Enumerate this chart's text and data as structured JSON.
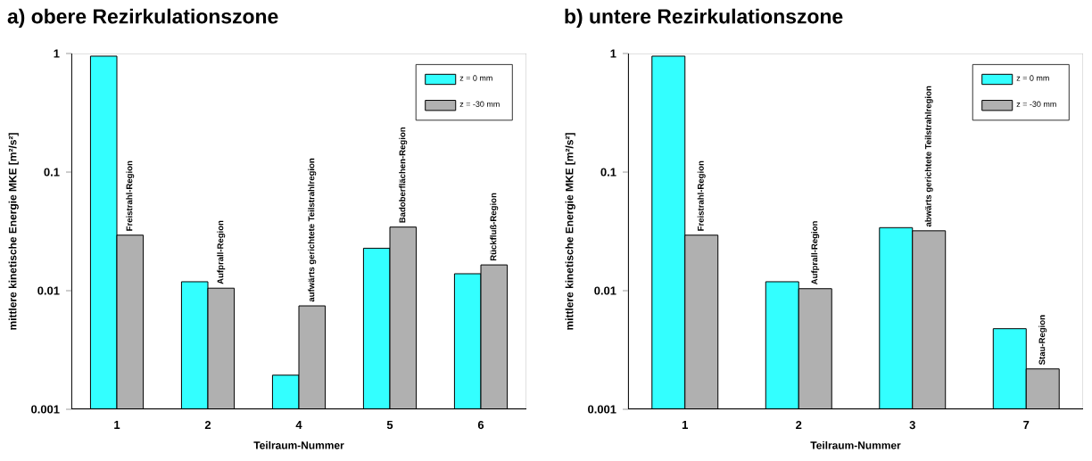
{
  "chart_data": [
    {
      "type": "bar",
      "title": "a) obere Rezirkulationszone",
      "xlabel": "Teilraum-Nummer",
      "ylabel": "mittlere kinetische Energie MKE [m²/s²]",
      "categories": [
        "1",
        "2",
        "4",
        "5",
        "6"
      ],
      "series": [
        {
          "name": "z = 0 mm",
          "color": "#33ffff",
          "values": [
            0.95,
            0.0119,
            0.00194,
            0.0228,
            0.0139
          ]
        },
        {
          "name": "z = -30 mm",
          "color": "#b0b0b0",
          "values": [
            0.0294,
            0.0105,
            0.00745,
            0.0344,
            0.0165
          ]
        }
      ],
      "log": "y",
      "ylim": [
        0.001,
        1
      ],
      "yticks": [
        0.001,
        0.01,
        0.1,
        1
      ],
      "legend": "top right",
      "grid": false,
      "annotations": [
        {
          "text": "Freistrahl-Region",
          "x": "1",
          "y": 0.0294
        },
        {
          "text": "Aufprall-Region",
          "x": "2",
          "y": 0.0105
        },
        {
          "text": "aufwärts gerichtete Teilstrahlregion",
          "x": "4",
          "y": 0.00745
        },
        {
          "text": "Badoberflächen-Region",
          "x": "5",
          "y": 0.0344
        },
        {
          "text": "Rückfluß-Region",
          "x": "6",
          "y": 0.0165
        }
      ]
    },
    {
      "type": "bar",
      "title": "b) untere Rezirkulationszone",
      "xlabel": "Teilraum-Nummer",
      "ylabel": "mittlere kinetische Energie MKE [m²/s²]",
      "categories": [
        "1",
        "2",
        "3",
        "7"
      ],
      "series": [
        {
          "name": "z = 0 mm",
          "color": "#33ffff",
          "values": [
            0.95,
            0.0119,
            0.034,
            0.00478
          ]
        },
        {
          "name": "z = -30 mm",
          "color": "#b0b0b0",
          "values": [
            0.0294,
            0.0104,
            0.032,
            0.00219
          ]
        }
      ],
      "log": "y",
      "ylim": [
        0.001,
        1
      ],
      "yticks": [
        0.001,
        0.01,
        0.1,
        1
      ],
      "legend": "top right",
      "grid": false,
      "annotations": [
        {
          "text": "Freistrahl-Region",
          "x": "1",
          "y": 0.0294
        },
        {
          "text": "Aufprall-Region",
          "x": "2",
          "y": 0.0104
        },
        {
          "text": "abwärts gerichtete Teilstrahlregion",
          "x": "3",
          "y": 0.032
        },
        {
          "text": "Stau-Region",
          "x": "7",
          "y": 0.00219
        }
      ]
    }
  ]
}
